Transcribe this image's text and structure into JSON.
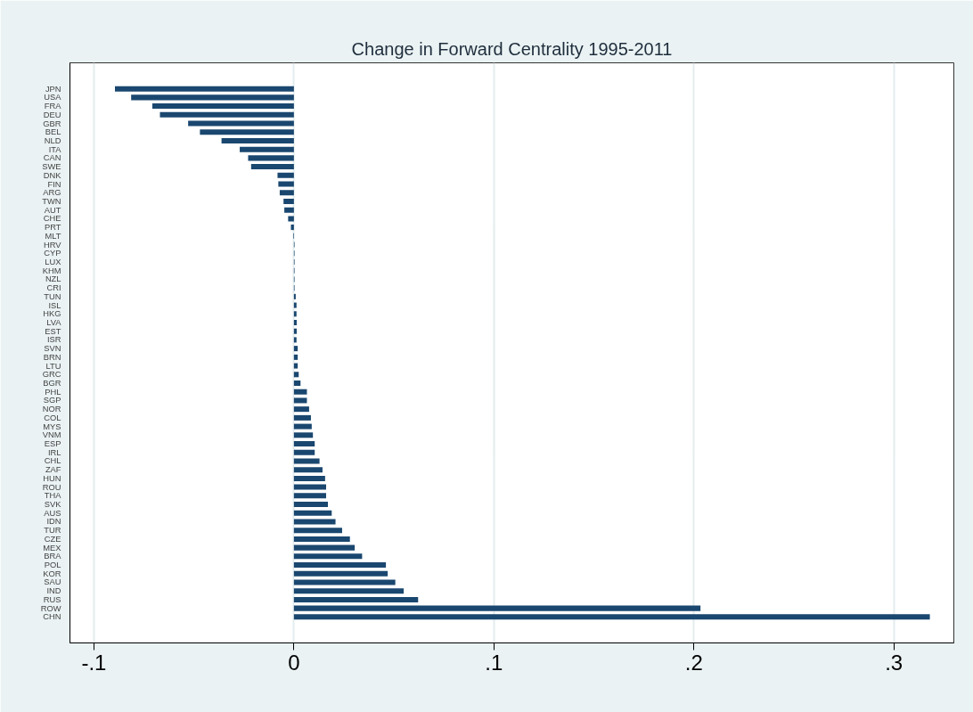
{
  "chart_data": {
    "type": "bar",
    "orientation": "horizontal",
    "title": "Change in Forward Centrality 1995-2011",
    "categories": [
      "JPN",
      "USA",
      "FRA",
      "DEU",
      "GBR",
      "BEL",
      "NLD",
      "ITA",
      "CAN",
      "SWE",
      "DNK",
      "FIN",
      "ARG",
      "TWN",
      "AUT",
      "CHE",
      "PRT",
      "MLT",
      "HRV",
      "CYP",
      "LUX",
      "KHM",
      "NZL",
      "CRI",
      "TUN",
      "ISL",
      "HKG",
      "LVA",
      "EST",
      "ISR",
      "SVN",
      "BRN",
      "LTU",
      "GRC",
      "BGR",
      "PHL",
      "SGP",
      "NOR",
      "COL",
      "MYS",
      "VNM",
      "ESP",
      "IRL",
      "CHL",
      "ZAF",
      "HUN",
      "ROU",
      "THA",
      "SVK",
      "AUS",
      "IDN",
      "TUR",
      "CZE",
      "MEX",
      "BRA",
      "POL",
      "KOR",
      "SAU",
      "IND",
      "RUS",
      "ROW",
      "CHN"
    ],
    "values": [
      -0.0895,
      -0.0814,
      -0.0708,
      -0.067,
      -0.0529,
      -0.047,
      -0.0362,
      -0.0271,
      -0.0229,
      -0.0214,
      -0.0082,
      -0.0078,
      -0.0071,
      -0.0052,
      -0.0048,
      -0.0029,
      -0.0015,
      -0.0003,
      0.0003,
      0.0003,
      0.0003,
      0.0003,
      0.0003,
      0.0003,
      0.0009,
      0.0013,
      0.0013,
      0.0014,
      0.0014,
      0.0013,
      0.0019,
      0.0019,
      0.0019,
      0.0024,
      0.0033,
      0.0065,
      0.0065,
      0.0076,
      0.0085,
      0.0089,
      0.0095,
      0.0104,
      0.0104,
      0.0128,
      0.0143,
      0.0156,
      0.0161,
      0.0161,
      0.017,
      0.0189,
      0.0208,
      0.0241,
      0.028,
      0.0304,
      0.0341,
      0.046,
      0.0469,
      0.0507,
      0.0549,
      0.0621,
      0.2033,
      0.318
    ],
    "color": "#1a476f",
    "xlim": [
      -0.112,
      0.33
    ],
    "xticks": [
      {
        "value": -0.1,
        "label": "-.1"
      },
      0,
      {
        "value": 0.1,
        "label": ".1"
      },
      {
        "value": 0.2,
        "label": ".2"
      },
      {
        "value": 0.3,
        "label": ".3"
      }
    ],
    "grid": "x"
  }
}
